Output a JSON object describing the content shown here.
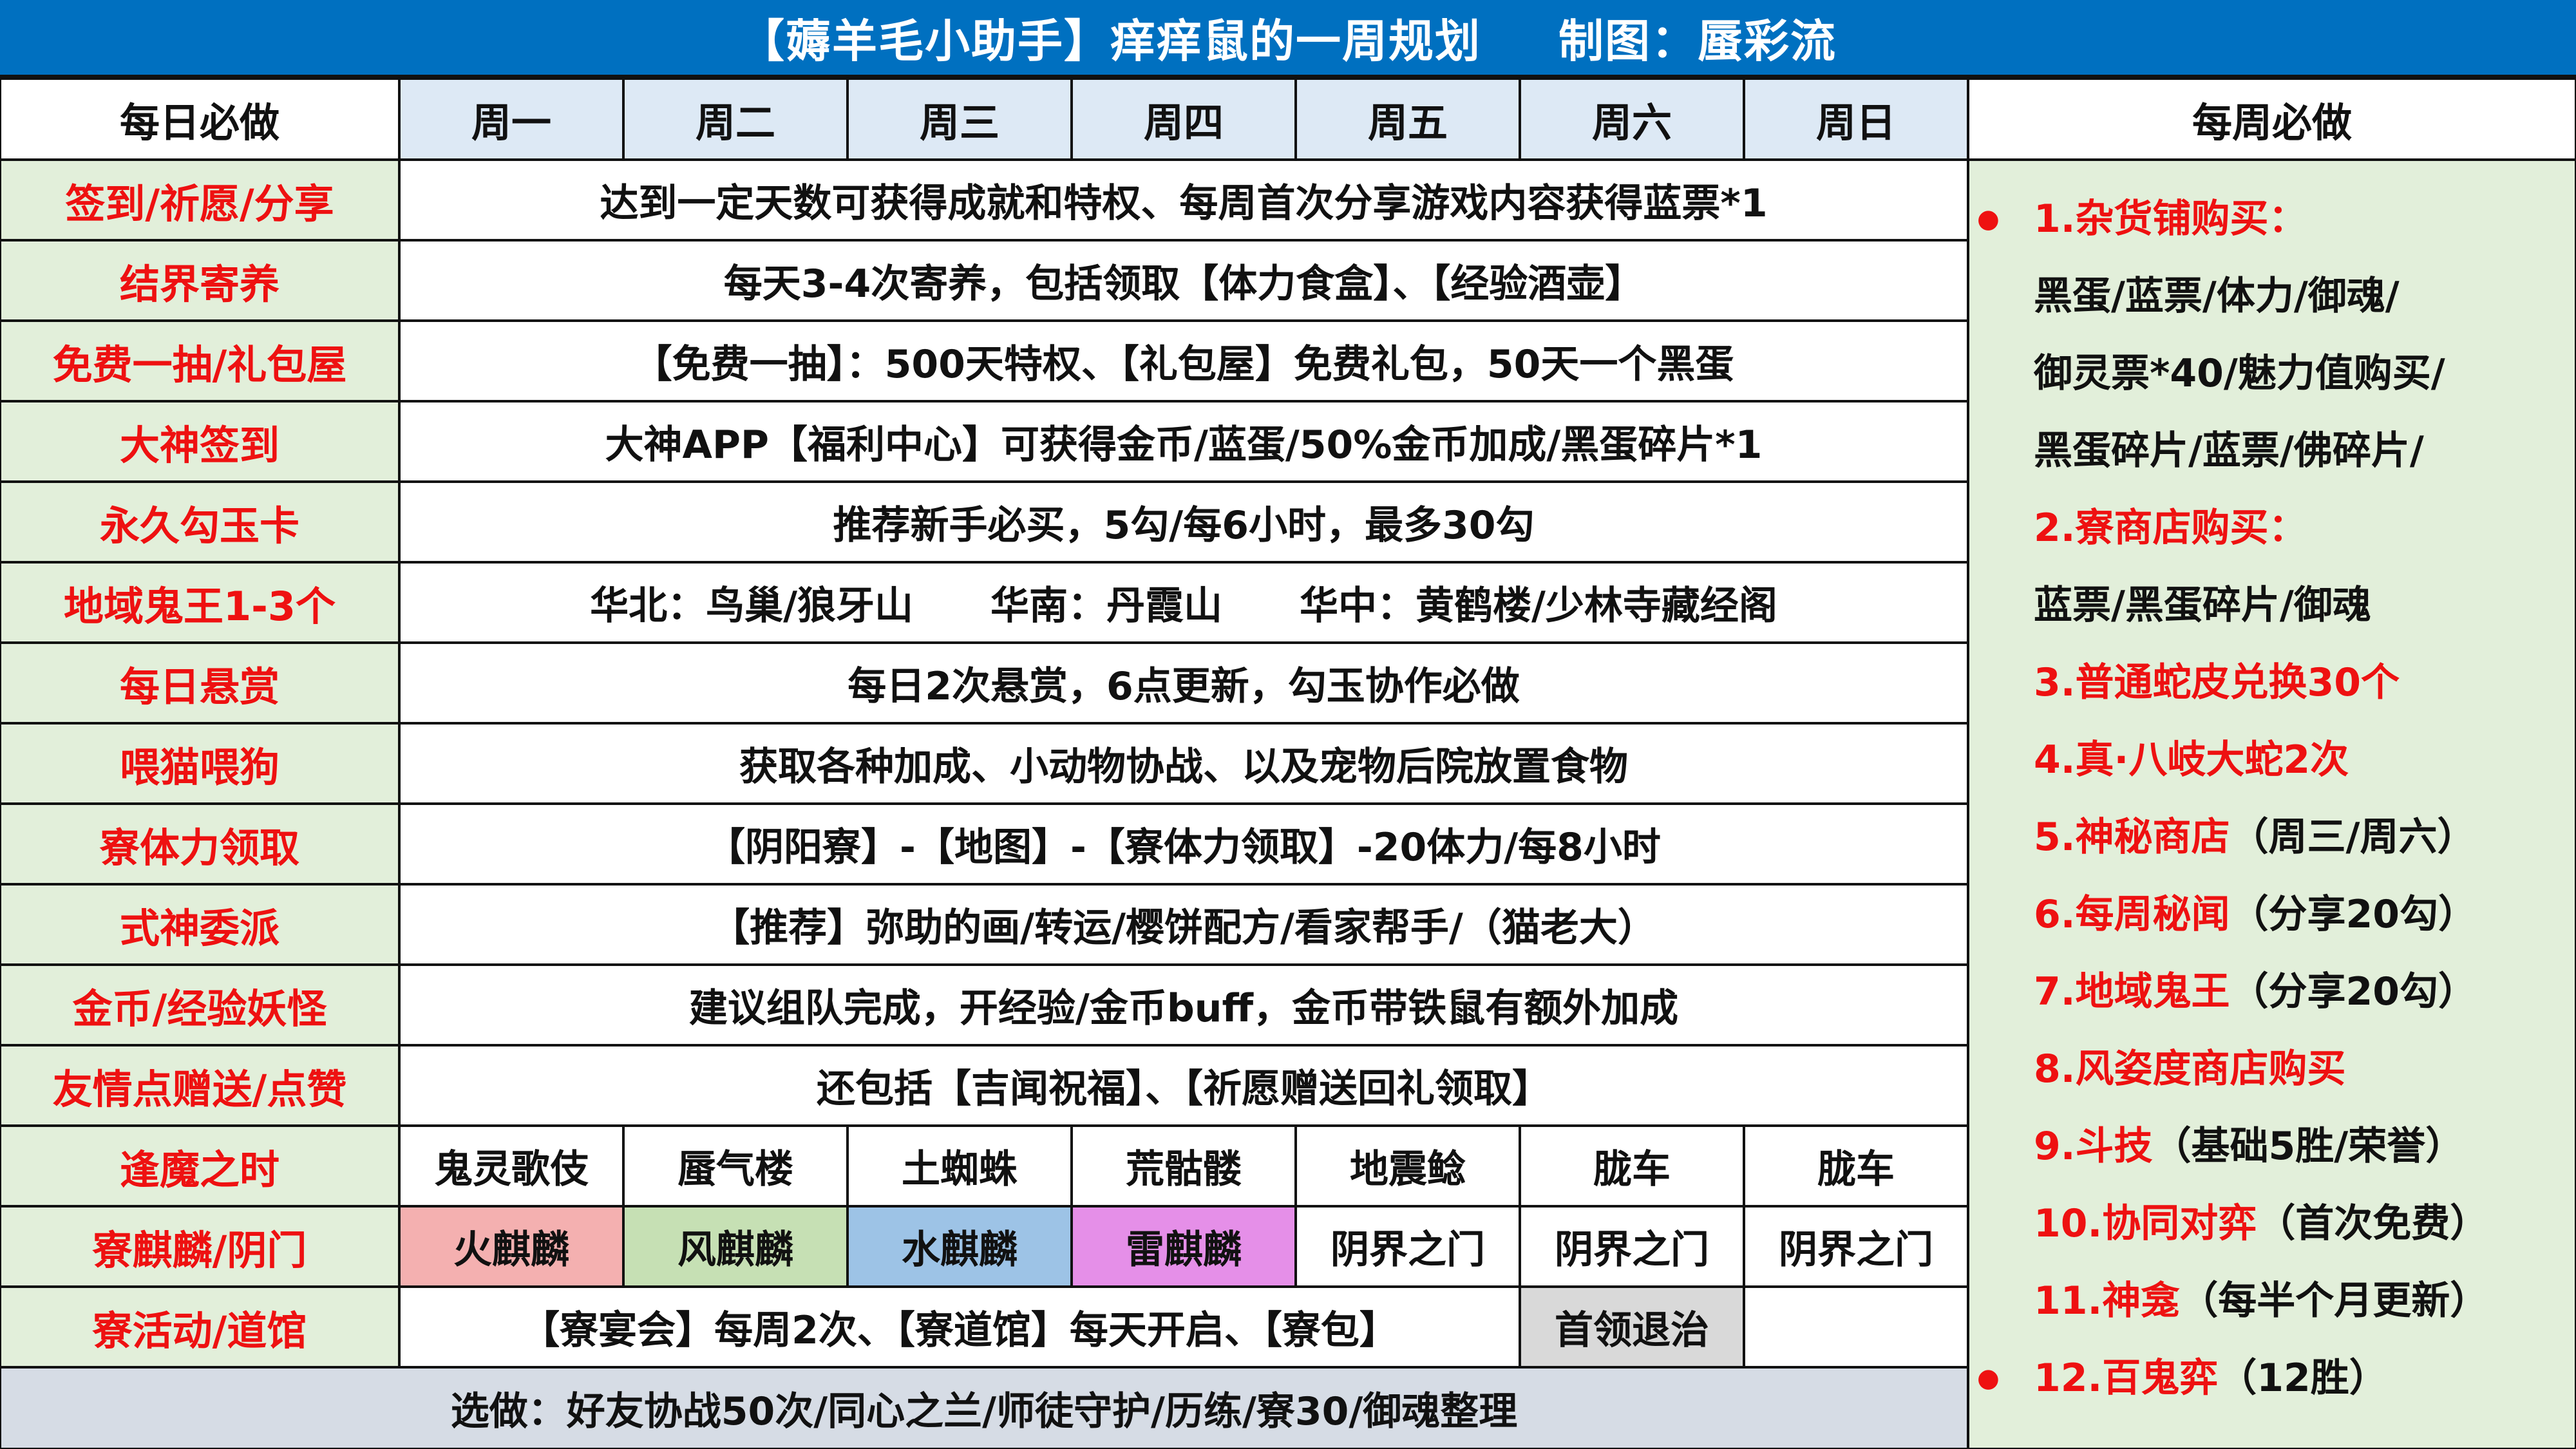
{
  "title": {
    "main": "【薅羊毛小助手】痒痒鼠的一周规划",
    "author": "制图：蜃彩流",
    "bg_color": "#0070c0"
  },
  "header": {
    "daily": "每日必做",
    "days": [
      "周一",
      "周二",
      "周三",
      "周四",
      "周五",
      "周六",
      "周日"
    ],
    "weekly": "每周必做"
  },
  "daily_rows": [
    {
      "label": "签到/祈愿/分享",
      "text": "达到一定天数可获得成就和特权、每周首次分享游戏内容获得蓝票*1"
    },
    {
      "label": "结界寄养",
      "text": "每天3-4次寄养，包括领取【体力食盒】、【经验酒壶】"
    },
    {
      "label": "免费一抽/礼包屋",
      "text": "【免费一抽】：500天特权、【礼包屋】免费礼包，50天一个黑蛋"
    },
    {
      "label": "大神签到",
      "text": "大神APP【福利中心】可获得金币/蓝蛋/50%金币加成/黑蛋碎片*1"
    },
    {
      "label": "永久勾玉卡",
      "text": "推荐新手必买，5勾/每6小时，最多30勾"
    },
    {
      "label": "地域鬼王1-3个",
      "text": "华北：鸟巢/狼牙山　　华南：丹霞山　　华中：黄鹤楼/少林寺藏经阁"
    },
    {
      "label": "每日悬赏",
      "text": "每日2次悬赏，6点更新，勾玉协作必做"
    },
    {
      "label": "喂猫喂狗",
      "text": "获取各种加成、小动物协战、以及宠物后院放置食物"
    },
    {
      "label": "寮体力领取",
      "text": "【阴阳寮】-【地图】-【寮体力领取】-20体力/每8小时"
    },
    {
      "label": "式神委派",
      "text": "【推荐】弥助的画/转运/樱饼配方/看家帮手/（猫老大）"
    },
    {
      "label": "金币/经验妖怪",
      "text": "建议组队完成，开经验/金币buff，金币带铁鼠有额外加成"
    },
    {
      "label": "友情点赠送/点赞",
      "text": "还包括【吉闻祝福】、【祈愿赠送回礼领取】"
    }
  ],
  "fengmo": {
    "label": "逢魔之时",
    "days": [
      "鬼灵歌伎",
      "蜃气楼",
      "土蜘蛛",
      "荒骷髅",
      "地震鲶",
      "胧车",
      "胧车"
    ]
  },
  "qilin": {
    "label": "寮麒麟/阴门",
    "days": [
      {
        "text": "火麒麟",
        "color": "#f4b0b0"
      },
      {
        "text": "风麒麟",
        "color": "#c6e0b4"
      },
      {
        "text": "水麒麟",
        "color": "#9dc3e6"
      },
      {
        "text": "雷麒麟",
        "color": "#e58fe8"
      },
      {
        "text": "阴界之门",
        "color": "#ffffff"
      },
      {
        "text": "阴界之门",
        "color": "#ffffff"
      },
      {
        "text": "阴界之门",
        "color": "#ffffff"
      }
    ]
  },
  "guild": {
    "label": "寮活动/道馆",
    "text": "【寮宴会】每周2次、【寮道馆】每天开启、【寮包】",
    "boss": "首领退治",
    "boss_color": "#d9d9d9"
  },
  "optional": "选做：好友协战50次/同心之兰/师徒守护/历练/寮30/御魂整理",
  "weekly": [
    {
      "text": "1.杂货铺购买：",
      "red": "1.杂货铺购买：",
      "bullet": true
    },
    {
      "text": "黑蛋/蓝票/体力/御魂/"
    },
    {
      "text": "御灵票*40/魅力值购买/"
    },
    {
      "text": "黑蛋碎片/蓝票/佛碎片/"
    },
    {
      "red": "2.寮商店购买："
    },
    {
      "text": "蓝票/黑蛋碎片/御魂"
    },
    {
      "red": "3.普通蛇皮兑换30个"
    },
    {
      "red": "4.真·八岐大蛇2次"
    },
    {
      "red": "5.神秘商店",
      "text": "（周三/周六）"
    },
    {
      "red": "6.每周秘闻",
      "text": "（分享20勾）"
    },
    {
      "red": "7.地域鬼王",
      "text": "（分享20勾）"
    },
    {
      "red": "8.风姿度商店购买"
    },
    {
      "red": "9.斗技",
      "text": "（基础5胜/荣誉）"
    },
    {
      "red": "10.协同对弈",
      "text": "（首次免费）"
    },
    {
      "red": "11.神龛",
      "text": "（每半个月更新）"
    },
    {
      "red": "12.百鬼弈",
      "text": "（12胜）",
      "bullet": true
    }
  ],
  "colors": {
    "label_red": "#ee1111",
    "label_bg": "#e2efda",
    "day_bg": "#dde9f5",
    "bottom_bg": "#d6dce5"
  }
}
